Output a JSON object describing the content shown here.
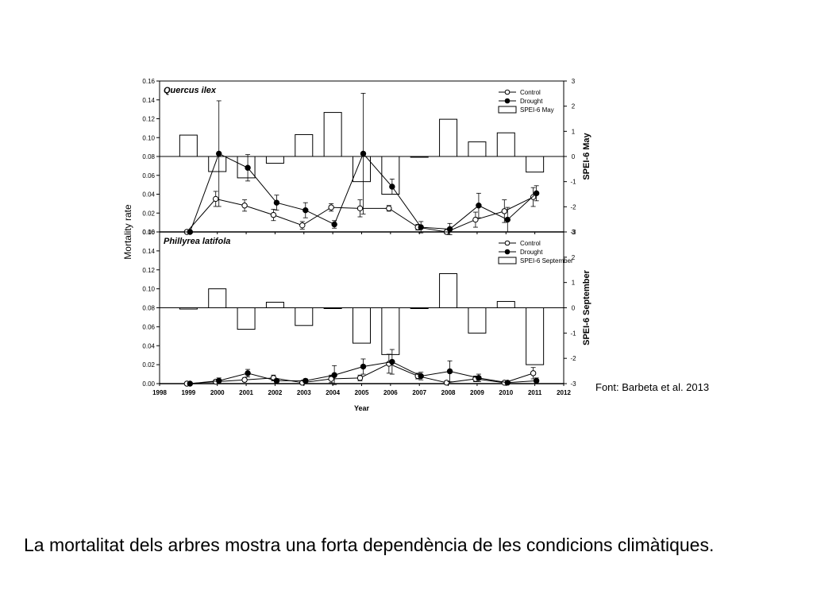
{
  "slide": {
    "caption": "La mortalitat dels arbres mostra una forta dependència de les condicions climàtiques.",
    "source": "Font: Barbeta et al. 2013"
  },
  "chart_data": [
    {
      "type": "line",
      "title": "Quercus ilex",
      "ylabel": "Mortality rate",
      "y2label": "SPEI-6 May",
      "xlabel": "Year",
      "xlim": [
        1998,
        2012
      ],
      "ylim": [
        0,
        0.16
      ],
      "y2lim": [
        -3,
        3
      ],
      "x_ticks": [
        "1998",
        "1999",
        "2000",
        "2001",
        "2002",
        "2003",
        "2004",
        "2005",
        "2006",
        "2007",
        "2008",
        "2009",
        "2010",
        "2011",
        "2012"
      ],
      "y_ticks": [
        "0.00",
        "0.02",
        "0.04",
        "0.06",
        "0.08",
        "0.10",
        "0.12",
        "0.14",
        "0.16"
      ],
      "y2_ticks": [
        "-3",
        "-2",
        "-1",
        "0",
        "1",
        "2",
        "3"
      ],
      "x": [
        1999,
        2000,
        2001,
        2002,
        2003,
        2004,
        2005,
        2006,
        2007,
        2008,
        2009,
        2010,
        2011
      ],
      "series": [
        {
          "name": "Control",
          "marker": "open-circle",
          "values": [
            0.0,
            0.035,
            0.028,
            0.018,
            0.007,
            0.026,
            0.025,
            0.025,
            0.005,
            0.0,
            0.013,
            0.022,
            0.037
          ],
          "errors": [
            0.0,
            0.008,
            0.006,
            0.006,
            0.004,
            0.004,
            0.009,
            0.003,
            0.003,
            0.002,
            0.008,
            0.012,
            0.01
          ]
        },
        {
          "name": "Drought",
          "marker": "filled-circle",
          "values": [
            0.0,
            0.083,
            0.068,
            0.031,
            0.023,
            0.008,
            0.083,
            0.048,
            0.005,
            0.003,
            0.028,
            0.013,
            0.041
          ],
          "errors": [
            0.0,
            0.056,
            0.014,
            0.008,
            0.008,
            0.004,
            0.064,
            0.008,
            0.006,
            0.006,
            0.013,
            0.013,
            0.008
          ]
        }
      ],
      "bars": {
        "name": "SPEI-6 May",
        "x": [
          1999,
          2000,
          2001,
          2002,
          2003,
          2004,
          2005,
          2006,
          2007,
          2008,
          2009,
          2010,
          2011
        ],
        "values": [
          0.85,
          -0.6,
          -0.85,
          -0.27,
          0.87,
          1.75,
          -1.0,
          -1.5,
          -0.03,
          1.48,
          0.58,
          0.94,
          -0.62
        ]
      },
      "legend": "top-right"
    },
    {
      "type": "line",
      "title": "Phillyrea latifola",
      "ylabel": "Mortality rate",
      "y2label": "SPEI-6 September",
      "xlabel": "Year",
      "xlim": [
        1998,
        2012
      ],
      "ylim": [
        0,
        0.16
      ],
      "y2lim": [
        -3,
        3
      ],
      "x_ticks": [
        "1998",
        "1999",
        "2000",
        "2001",
        "2002",
        "2003",
        "2004",
        "2005",
        "2006",
        "2007",
        "2008",
        "2009",
        "2010",
        "2011",
        "2012"
      ],
      "y_ticks": [
        "0.00",
        "0.02",
        "0.04",
        "0.06",
        "0.08",
        "0.10",
        "0.12",
        "0.14",
        "0.16"
      ],
      "y2_ticks": [
        "-3",
        "-2",
        "-1",
        "0",
        "1",
        "2",
        "3"
      ],
      "x": [
        1999,
        2000,
        2001,
        2002,
        2003,
        2004,
        2005,
        2006,
        2007,
        2008,
        2009,
        2010,
        2011
      ],
      "series": [
        {
          "name": "Control",
          "marker": "open-circle",
          "values": [
            0.0,
            0.002,
            0.004,
            0.006,
            0.001,
            0.005,
            0.006,
            0.021,
            0.008,
            0.001,
            0.005,
            0.001,
            0.011
          ],
          "errors": [
            0.0,
            0.002,
            0.002,
            0.003,
            0.002,
            0.004,
            0.003,
            0.01,
            0.003,
            0.002,
            0.003,
            0.001,
            0.006
          ]
        },
        {
          "name": "Drought",
          "marker": "filled-circle",
          "values": [
            0.0,
            0.003,
            0.011,
            0.003,
            0.003,
            0.009,
            0.018,
            0.023,
            0.008,
            0.013,
            0.006,
            0.001,
            0.003
          ],
          "errors": [
            0.0,
            0.003,
            0.004,
            0.002,
            0.002,
            0.01,
            0.008,
            0.013,
            0.004,
            0.011,
            0.004,
            0.001,
            0.003
          ]
        }
      ],
      "bars": {
        "name": "SPEI-6 September",
        "x": [
          1999,
          2000,
          2001,
          2002,
          2003,
          2004,
          2005,
          2006,
          2007,
          2008,
          2009,
          2010,
          2011
        ],
        "values": [
          -0.05,
          0.75,
          -0.85,
          0.22,
          -0.7,
          -0.03,
          -1.4,
          -1.85,
          0.0,
          1.35,
          -1.0,
          0.25,
          -2.25
        ]
      },
      "legend": "top-right"
    }
  ]
}
